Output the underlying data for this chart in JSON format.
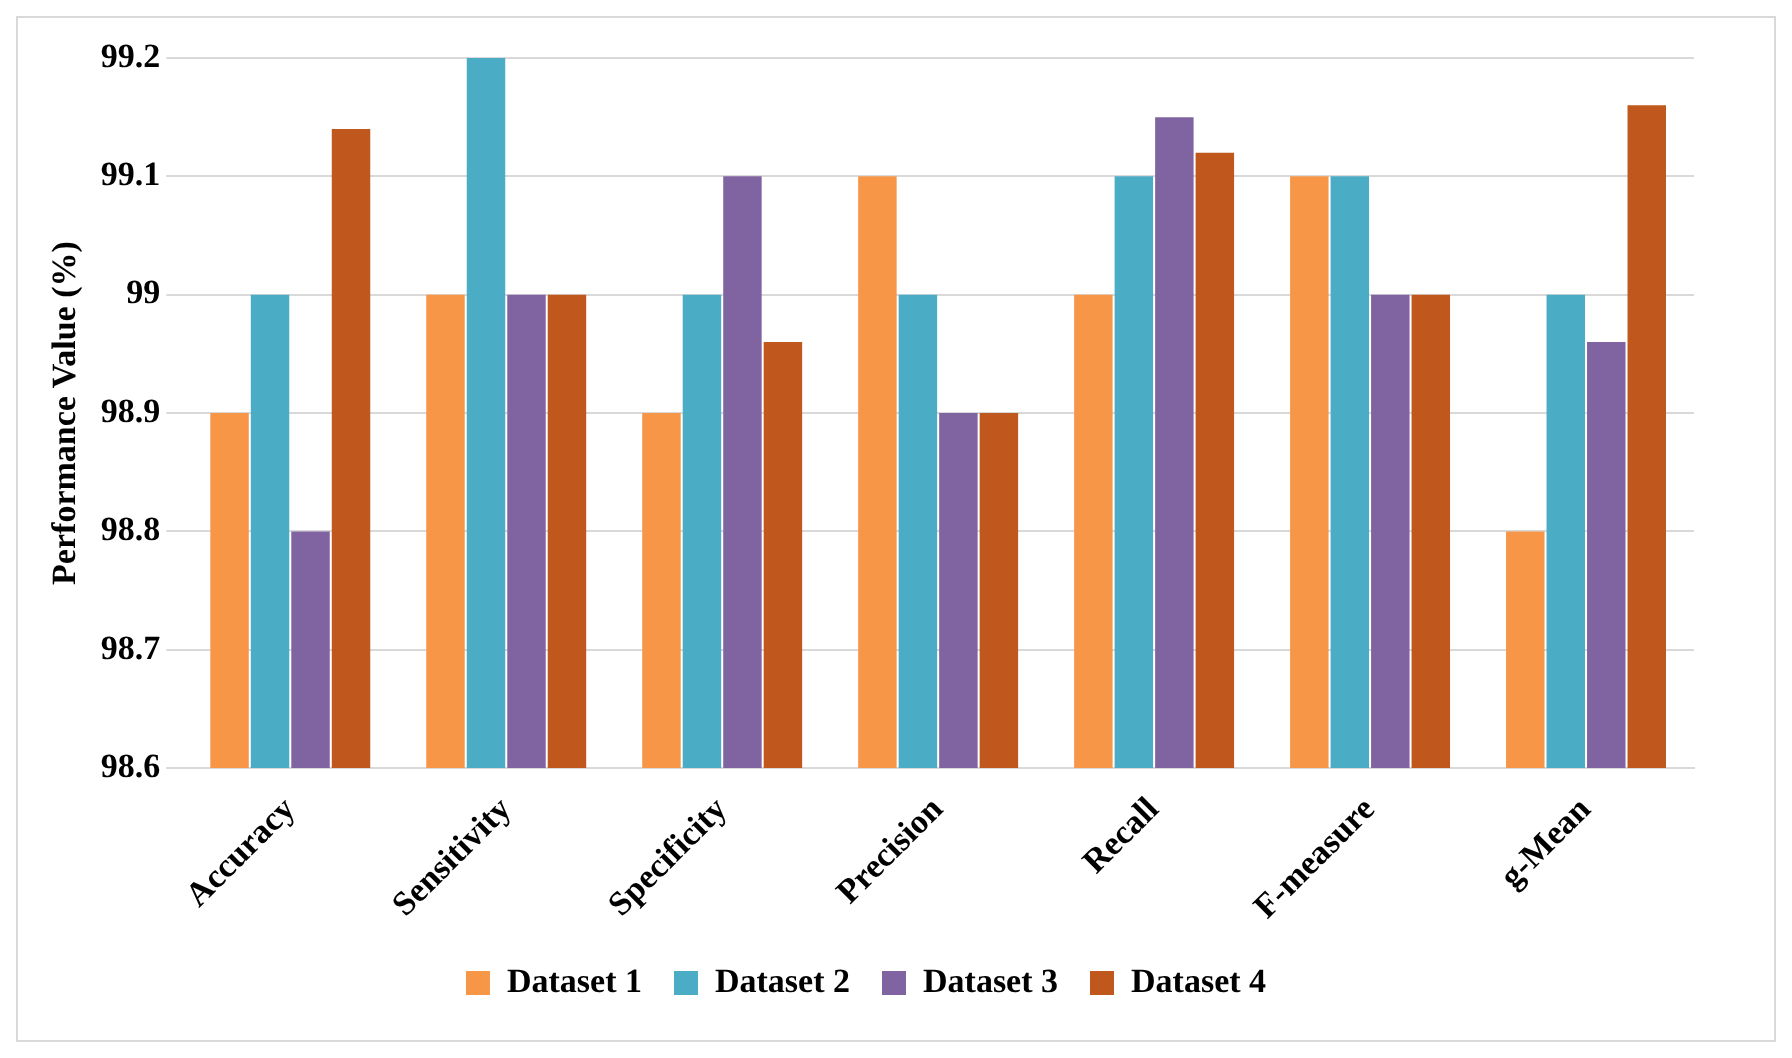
{
  "chart_data": {
    "type": "bar",
    "ylabel": "Performance Value (%)",
    "categories": [
      "Accuracy",
      "Sensitivity",
      "Specificity",
      "Precision",
      "Recall",
      "F-measure",
      "g-Mean"
    ],
    "series": [
      {
        "name": "Dataset 1",
        "color": "#f79646",
        "values": [
          98.9,
          99.0,
          98.9,
          99.1,
          99.0,
          99.1,
          98.8
        ]
      },
      {
        "name": "Dataset 2",
        "color": "#4bacc6",
        "values": [
          99.0,
          99.2,
          99.0,
          99.0,
          99.1,
          99.1,
          99.0
        ]
      },
      {
        "name": "Dataset 3",
        "color": "#8064a2",
        "values": [
          98.8,
          99.0,
          99.1,
          98.9,
          99.15,
          99.0,
          98.96
        ]
      },
      {
        "name": "Dataset 4",
        "color": "#c0581e",
        "values": [
          99.14,
          99.0,
          98.96,
          98.9,
          99.12,
          99.0,
          99.16
        ]
      }
    ],
    "ylim": [
      98.6,
      99.2
    ],
    "yticks": [
      98.6,
      98.7,
      98.8,
      98.9,
      99,
      99.1,
      99.2
    ],
    "grid": "y",
    "legend": "bottom"
  }
}
